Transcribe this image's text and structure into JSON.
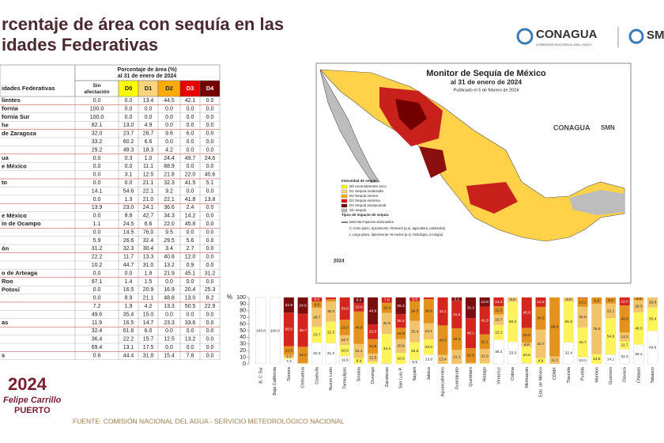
{
  "header": {
    "title_lines": [
      "rcentaje de área con sequía en las",
      "idades Federativas"
    ],
    "logo": {
      "name": "CONAGUA",
      "subtitle": "COMISIÓN NACIONAL DEL AGUA"
    },
    "logo2": "SM"
  },
  "table": {
    "name_header": "idades Federativas",
    "group_header": [
      "Porcentaje de área (%)",
      "al 31 de enero de 2024"
    ],
    "columns": [
      {
        "label": "Sin afectación",
        "color": "#ffffff"
      },
      {
        "label": "D0",
        "color": "#ffff00"
      },
      {
        "label": "D1",
        "color": "#fcd37f"
      },
      {
        "label": "D2",
        "color": "#ffaa00"
      },
      {
        "label": "D3",
        "color": "#e60000"
      },
      {
        "label": "D4",
        "color": "#730000"
      }
    ],
    "rows": [
      {
        "name": "lientes",
        "values": [
          "0.0",
          "0.0",
          "13.4",
          "44.5",
          "42.1",
          "0.0"
        ]
      },
      {
        "name": "fornia",
        "values": [
          "100.0",
          "0.0",
          "0.0",
          "0.0",
          "0.0",
          "0.0"
        ]
      },
      {
        "name": "fornia Sur",
        "values": [
          "100.0",
          "0.0",
          "0.0",
          "0.0",
          "0.0",
          "0.0"
        ]
      },
      {
        "name": "he",
        "values": [
          "82.1",
          "13.0",
          "4.9",
          "0.0",
          "0.0",
          "0.0"
        ]
      },
      {
        "name": "de Zaragoza",
        "values": [
          "32.0",
          "23.7",
          "28.7",
          "9.6",
          "6.0",
          "0.0"
        ]
      },
      {
        "values": [
          "33.2",
          "60.2",
          "6.6",
          "0.0",
          "0.0",
          "0.0"
        ]
      },
      {
        "values": [
          "29.2",
          "48.3",
          "18.3",
          "4.2",
          "0.0",
          "0.0"
        ]
      },
      {
        "name": "ua",
        "values": [
          "0.0",
          "0.3",
          "1.0",
          "24.4",
          "49.7",
          "24.6"
        ]
      },
      {
        "name": "e México",
        "values": [
          "0.0",
          "0.0",
          "11.1",
          "88.9",
          "0.0",
          "0.0"
        ]
      },
      {
        "values": [
          "0.0",
          "3.1",
          "12.5",
          "21.8",
          "22.0",
          "40.6"
        ]
      },
      {
        "name": "to",
        "values": [
          "0.0",
          "0.0",
          "21.1",
          "32.3",
          "41.5",
          "5.1"
        ]
      },
      {
        "values": [
          "14.1",
          "54.6",
          "22.1",
          "9.2",
          "0.0",
          "0.0"
        ]
      },
      {
        "values": [
          "0.0",
          "1.3",
          "21.0",
          "22.1",
          "41.8",
          "13.8"
        ]
      },
      {
        "values": [
          "13.9",
          "23.0",
          "24.1",
          "36.6",
          "2.4",
          "0.0"
        ]
      },
      {
        "name": "e México",
        "values": [
          "0.0",
          "8.8",
          "42.7",
          "34.3",
          "14.2",
          "0.0"
        ]
      },
      {
        "name": "in de Ocampo",
        "values": [
          "1.1",
          "24.5",
          "6.6",
          "22.0",
          "45.8",
          "0.0"
        ]
      },
      {
        "values": [
          "0.0",
          "14.5",
          "76.0",
          "9.5",
          "0.0",
          "0.0"
        ]
      },
      {
        "values": [
          "5.9",
          "26.6",
          "32.4",
          "29.5",
          "5.6",
          "0.0"
        ]
      },
      {
        "name": "ón",
        "values": [
          "31.2",
          "32.3",
          "30.4",
          "3.4",
          "2.7",
          "0.0"
        ]
      },
      {
        "values": [
          "22.2",
          "11.7",
          "13.3",
          "40.8",
          "12.0",
          "0.0"
        ]
      },
      {
        "values": [
          "10.2",
          "44.7",
          "31.0",
          "13.2",
          "0.9",
          "0.0"
        ]
      },
      {
        "name": "o de Arteaga",
        "values": [
          "0.0",
          "0.0",
          "1.8",
          "21.9",
          "45.1",
          "31.2"
        ]
      },
      {
        "name": "Roo",
        "values": [
          "97.1",
          "1.4",
          "1.5",
          "0.0",
          "0.0",
          "0.0"
        ]
      },
      {
        "name": "Potosí",
        "values": [
          "0.0",
          "16.5",
          "20.9",
          "16.9",
          "20.4",
          "25.3"
        ]
      },
      {
        "values": [
          "0.0",
          "8.9",
          "21.1",
          "48.8",
          "13.0",
          "8.2"
        ]
      },
      {
        "values": [
          "7.2",
          "1.9",
          "4.2",
          "13.3",
          "50.5",
          "22.9"
        ]
      },
      {
        "values": [
          "49.6",
          "35.4",
          "15.0",
          "0.0",
          "0.0",
          "0.0"
        ]
      },
      {
        "name": "as",
        "values": [
          "11.9",
          "16.5",
          "14.7",
          "23.3",
          "33.6",
          "0.0"
        ]
      },
      {
        "values": [
          "32.4",
          "61.6",
          "6.0",
          "0.0",
          "0.0",
          "0.0"
        ]
      },
      {
        "values": [
          "36.4",
          "22.2",
          "15.7",
          "12.5",
          "13.2",
          "0.0"
        ]
      },
      {
        "values": [
          "69.4",
          "13.1",
          "17.5",
          "0.0",
          "0.0",
          "0.0"
        ]
      },
      {
        "name": "s",
        "values": [
          "0.6",
          "44.4",
          "31.8",
          "15.4",
          "7.8",
          "0.0"
        ]
      }
    ]
  },
  "map": {
    "title": "Monitor de Sequía de México",
    "subtitle": "al 31 de enero de 2024",
    "published": "Publicado el 5 de febrero de 2024",
    "legend_title": "Intensidad de sequía:",
    "legend": [
      {
        "label": "D0 Anormalmente seco",
        "color": "#ffff00"
      },
      {
        "label": "D1 Sequía moderada",
        "color": "#fcd37f"
      },
      {
        "label": "D2 Sequía severa",
        "color": "#ffaa00"
      },
      {
        "label": "D3 Sequía extrema",
        "color": "#e60000"
      },
      {
        "label": "D4 Sequía excepcional",
        "color": "#730000"
      },
      {
        "label": "Sin sequía",
        "color": "#bdbdbd"
      }
    ],
    "impact_title": "Tipos de impacto de sequía:",
    "impacts": [
      "Delimita impactos dominantes",
      "C Corto plazo, típicamente <6meses (p.ej. agricultura, pastizales)",
      "L Largo plazo, típicamente >6 meses (p.ej. hidrología, ecología)"
    ],
    "year": "2024",
    "logo": "CONAGUA",
    "logo2": "SMN"
  },
  "chart_data": {
    "type": "bar",
    "stacked": true,
    "y_label": "%",
    "categories": [
      "B. C Sur",
      "Baja California",
      "Sonora",
      "Chihuahua",
      "Coahuila",
      "Nuevo León",
      "Tamaulipas",
      "Sinaloa",
      "Durango",
      "Zacatecas",
      "San Luis P.",
      "Nayarit",
      "Jalisco",
      "Aguascalientes",
      "Guanajuato",
      "Querétaro",
      "Hidalgo",
      "Veracruz",
      "Colima",
      "Michoacán",
      "Edo. de México",
      "CDMX",
      "Tlaxcala",
      "Puebla",
      "Morelos",
      "Guerrero",
      "Oaxaca",
      "Chiapas",
      "Tabasco"
    ],
    "series": [
      {
        "color": "#ffffff",
        "values": [
          100,
          100,
          7.2,
          0,
          32.0,
          31.2,
          11.9,
          0,
          0,
          0.6,
          0,
          5.9,
          13.9,
          0,
          0,
          0,
          0,
          36.4,
          33.2,
          1.1,
          0,
          0,
          32.4,
          10.2,
          0,
          14.1,
          22.2,
          29.2,
          49.6
        ],
        "value_labels": [
          "100.0",
          "100.0",
          "7.2",
          "0.0",
          "32.0",
          "31.2",
          "11.9",
          "0.0",
          "0.0",
          "0.6",
          "0.0",
          "5.9",
          "13.9",
          "0.0",
          "0.0",
          "0.0",
          "0.0",
          "36.4",
          "33.2",
          "1.1",
          "0.0",
          "0.0",
          "32.4",
          "10.2",
          "0.0",
          "14.1",
          "22.2",
          "29.2",
          "49.6"
        ]
      },
      {
        "color": "#fff35c",
        "values": [
          0,
          0,
          1.9,
          0.3,
          23.7,
          32.3,
          16.5,
          8.9,
          3.1,
          44.4,
          16.5,
          26.6,
          23.0,
          0,
          0,
          0,
          1.3,
          22.2,
          60.2,
          24.5,
          8.8,
          0,
          61.6,
          44.7,
          14.5,
          54.6,
          11.7,
          48.3,
          35.4
        ],
        "value_labels": [
          "0.0",
          "0.0",
          "1.9",
          "0.3",
          "23.7",
          "32.3",
          "16.5",
          "8.9",
          "3.1",
          "44.4",
          "16.5",
          "26.6",
          "23.0",
          "0.0",
          "0.0",
          "0.0",
          "1.3",
          "22.2",
          "60.2",
          "24.5",
          "8.8",
          "0.0",
          "61.6",
          "44.7",
          "14.5",
          "54.6",
          "11.7",
          "48.3",
          "35.4"
        ]
      },
      {
        "color": "#f2c46b",
        "values": [
          0,
          0,
          4.2,
          1.0,
          28.7,
          30.4,
          14.7,
          21.1,
          12.5,
          31.8,
          20.9,
          32.4,
          24.1,
          13.4,
          21.1,
          1.8,
          21.0,
          15.7,
          6.6,
          6.6,
          42.7,
          11.1,
          6.0,
          31.0,
          76.0,
          22.1,
          13.3,
          18.3,
          15.0
        ],
        "value_labels": [
          "0.0",
          "0.0",
          "4.2",
          "1.0",
          "28.7",
          "30.4",
          "14.7",
          "21.1",
          "12.5",
          "31.8",
          "20.9",
          "32.4",
          "24.1",
          "13.4",
          "21.1",
          "1.8",
          "21.0",
          "15.7",
          "6.6",
          "6.6",
          "42.7",
          "11.1",
          "6.0",
          "31.0",
          "76.0",
          "22.1",
          "13.3",
          "18.3",
          "15.0"
        ]
      },
      {
        "color": "#e3921e",
        "values": [
          0,
          0,
          13.3,
          24.4,
          9.6,
          3.4,
          23.3,
          48.8,
          21.8,
          15.4,
          16.9,
          29.5,
          36.6,
          44.5,
          32.3,
          21.9,
          22.1,
          12.5,
          0,
          22.0,
          34.3,
          88.9,
          0,
          13.2,
          9.5,
          9.2,
          40.8,
          4.2,
          0
        ],
        "value_labels": [
          "0.0",
          "0.0",
          "13.3",
          "24.4",
          "9.6",
          "3.4",
          "23.3",
          "48.8",
          "21.8",
          "15.4",
          "16.9",
          "29.5",
          "36.6",
          "44.5",
          "32.3",
          "21.9",
          "22.1",
          "12.5",
          "0.0",
          "22.0",
          "34.3",
          "88.9",
          "0.0",
          "13.2",
          "9.5",
          "9.2",
          "40.8",
          "4.2",
          "0.0"
        ]
      },
      {
        "color": "#d4261f",
        "values": [
          0,
          0,
          50.5,
          49.7,
          6.0,
          2.7,
          33.6,
          13.0,
          22.0,
          7.8,
          20.4,
          5.6,
          2.4,
          42.1,
          41.5,
          45.1,
          41.8,
          13.2,
          0,
          45.8,
          14.2,
          0,
          0,
          0.9,
          0,
          0,
          12.0,
          0,
          0
        ],
        "value_labels": [
          "0.0",
          "0.0",
          "50.5",
          "49.7",
          "6.0",
          "2.7",
          "33.6",
          "13.0",
          "22.0",
          "7.8",
          "20.4",
          "5.6",
          "2.4",
          "42.1",
          "41.5",
          "45.1",
          "41.8",
          "13.2",
          "0.0",
          "45.8",
          "14.2",
          "0.0",
          "0.0",
          "0.9",
          "0.0",
          "0.0",
          "12.0",
          "0.0",
          "0.0"
        ]
      },
      {
        "color": "#7a0d0d",
        "values": [
          0,
          0,
          22.9,
          24.6,
          0,
          0,
          0,
          8.2,
          40.6,
          0,
          25.3,
          0,
          0,
          0,
          5.1,
          31.2,
          13.8,
          0,
          0,
          0,
          0,
          0,
          0,
          0,
          0,
          0,
          0,
          0,
          0
        ],
        "value_labels": [
          "0.0",
          "0.0",
          "22.9",
          "24.6",
          "0.0",
          "0.0",
          "0.0",
          "8.2",
          "40.6",
          "0.0",
          "25.3",
          "0.0",
          "0.0",
          "0.0",
          "5.1",
          "31.2",
          "13.8",
          "0.0",
          "0.0",
          "0.0",
          "0.0",
          "0.0",
          "0.0",
          "0.0",
          "0.0",
          "0.0",
          "0.0",
          "0.0",
          "0.0"
        ]
      }
    ],
    "ylim": [
      0,
      100
    ],
    "yticks": [
      0,
      10,
      20,
      30,
      40,
      50,
      60,
      70,
      80,
      90,
      100
    ],
    "grid": false
  },
  "footer": {
    "source": "FUENTE: COMISIÓN NACIONAL DEL AGUA - SERVICIO METEOROLÓGICO NACIONAL",
    "logo": {
      "year": "2024",
      "name_lines": [
        "Felipe Carrillo",
        "PUERTO"
      ]
    }
  }
}
